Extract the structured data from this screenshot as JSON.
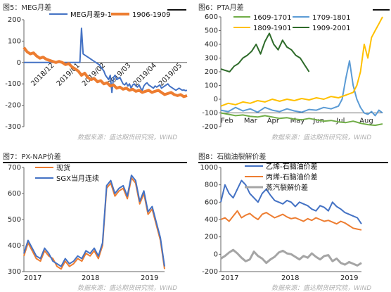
{
  "source_text": "数据来源：盛达期货研究院，WIND",
  "chart_data": [
    {
      "id": "fig5",
      "type": "line",
      "title": "图5：MEG月差",
      "ylim": [
        -300,
        200
      ],
      "yticks": [
        200,
        100,
        0,
        -100,
        -200,
        -300
      ],
      "xlabels": [
        "2018/12",
        "2019/01",
        "2019/02",
        "2019/03",
        "2019/04",
        "2019/05"
      ],
      "legend_position": "top",
      "series": [
        {
          "name": "MEG月差9-1",
          "color": "#4472c4",
          "x": [
            0,
            5,
            10,
            15,
            20,
            25,
            30,
            35,
            40,
            45,
            50,
            55,
            60,
            65,
            70,
            72,
            74,
            76,
            78,
            80,
            82,
            84,
            86,
            88,
            90,
            92,
            94,
            96,
            98,
            100,
            102,
            104,
            106,
            108,
            110,
            112,
            114,
            116,
            118,
            120,
            122,
            124,
            126,
            128,
            130,
            132,
            134,
            136,
            138,
            140,
            142,
            144,
            146,
            148,
            150,
            152,
            154,
            156,
            158,
            160,
            162,
            164,
            166,
            168,
            170,
            172,
            174,
            176,
            178,
            180,
            182,
            184,
            186,
            188,
            190,
            192,
            194,
            196,
            198,
            200,
            202,
            204
          ],
          "y": [
            0,
            0,
            0,
            0,
            0,
            0,
            0,
            0,
            0,
            0,
            0,
            0,
            0,
            0,
            0,
            160,
            40,
            35,
            30,
            25,
            20,
            15,
            10,
            5,
            0,
            -5,
            -10,
            -20,
            -30,
            -40,
            -60,
            -70,
            -80,
            -60,
            -140,
            -70,
            -60,
            -80,
            -75,
            -70,
            -85,
            -100,
            -105,
            -95,
            -110,
            -100,
            -120,
            -105,
            -100,
            -110,
            -115,
            -105,
            -120,
            -130,
            -110,
            -100,
            -95,
            -105,
            -110,
            -115,
            -120,
            -110,
            -115,
            -110,
            -105,
            -120,
            -115,
            -110,
            -105,
            -100,
            -110,
            -115,
            -120,
            -125,
            -130,
            -125,
            -120,
            -125,
            -130,
            -128,
            -132,
            -130
          ]
        },
        {
          "name": "1906-1909",
          "color": "#ed7d31",
          "x": [
            0,
            4,
            8,
            12,
            16,
            20,
            24,
            28,
            32,
            36,
            40,
            44,
            48,
            52,
            56,
            60,
            64,
            68,
            72,
            76,
            80,
            84,
            88,
            92,
            96,
            100,
            104,
            108,
            112,
            116,
            120,
            124,
            128,
            132,
            136,
            140,
            144,
            148,
            152,
            156,
            160,
            164,
            168,
            172,
            176,
            180,
            184,
            188,
            192,
            196,
            200,
            204
          ],
          "y": [
            70,
            50,
            40,
            45,
            30,
            20,
            25,
            15,
            10,
            5,
            0,
            5,
            0,
            -10,
            -5,
            -20,
            -30,
            -40,
            -60,
            -50,
            -70,
            -80,
            -75,
            -90,
            -85,
            -100,
            -95,
            -110,
            -105,
            -120,
            -115,
            -125,
            -120,
            -130,
            -125,
            -135,
            -130,
            -140,
            -135,
            -130,
            -140,
            -135,
            -130,
            -140,
            -150,
            -145,
            -140,
            -150,
            -155,
            -150,
            -160,
            -155
          ]
        }
      ]
    },
    {
      "id": "fig6",
      "type": "line",
      "title": "图6：PTA月差",
      "ylim": [
        -200,
        600
      ],
      "yticks": [
        600,
        500,
        400,
        300,
        200,
        100,
        0,
        -100,
        -200
      ],
      "xlabels": [
        "Feb",
        "Mar",
        "Apr",
        "May",
        "Jun",
        "Jul",
        "Aug"
      ],
      "legend_position": "top",
      "series": [
        {
          "name": "1609-1701",
          "color": "#70ad47",
          "x": [
            0,
            10,
            20,
            30,
            40,
            50,
            60,
            70,
            80,
            90,
            100,
            110,
            120,
            130,
            140,
            150,
            160,
            170,
            180,
            190,
            200,
            210,
            220
          ],
          "y": [
            -100,
            -110,
            -120,
            -115,
            -125,
            -130,
            -120,
            -130,
            -140,
            -135,
            -145,
            -150,
            -140,
            -150,
            -160,
            -155,
            -165,
            -170,
            -160,
            -175,
            -185,
            -190,
            -180
          ]
        },
        {
          "name": "1709-1801",
          "color": "#5b9bd5",
          "x": [
            0,
            10,
            20,
            30,
            40,
            50,
            60,
            70,
            80,
            90,
            100,
            110,
            120,
            130,
            140,
            150,
            160,
            165,
            170,
            175,
            180,
            185,
            190,
            195,
            200,
            205,
            210,
            215,
            220
          ],
          "y": [
            -80,
            -90,
            -60,
            -85,
            -70,
            -95,
            -60,
            -80,
            -90,
            -70,
            -85,
            -95,
            -75,
            -80,
            -60,
            -70,
            -50,
            0,
            150,
            280,
            100,
            0,
            -60,
            -100,
            -110,
            -90,
            -120,
            -80,
            -100
          ]
        },
        {
          "name": "1809-1901",
          "color": "#ffc000",
          "x": [
            0,
            10,
            20,
            30,
            40,
            50,
            60,
            70,
            80,
            90,
            100,
            110,
            120,
            130,
            140,
            150,
            160,
            170,
            180,
            185,
            190,
            195,
            200,
            205,
            210,
            215,
            220
          ],
          "y": [
            -50,
            -30,
            -40,
            -20,
            -30,
            -10,
            -20,
            0,
            -15,
            0,
            -10,
            5,
            -5,
            10,
            0,
            20,
            10,
            30,
            50,
            100,
            200,
            400,
            300,
            450,
            500,
            550,
            600
          ]
        },
        {
          "name": "1909-2001",
          "color": "#2e6b2a",
          "x": [
            0,
            6,
            12,
            18,
            24,
            30,
            36,
            42,
            48,
            54,
            60,
            66,
            72,
            78,
            84,
            90,
            96,
            102,
            108,
            114,
            120
          ],
          "y": [
            220,
            210,
            200,
            240,
            260,
            300,
            320,
            350,
            400,
            330,
            420,
            480,
            400,
            360,
            430,
            380,
            360,
            320,
            300,
            250,
            200
          ]
        }
      ]
    },
    {
      "id": "fig7",
      "type": "line",
      "title": "图7：PX-NAP价差",
      "ylim": [
        300,
        700
      ],
      "yticks": [
        700,
        600,
        500,
        400,
        300
      ],
      "xlabels": [
        "2017",
        "2018",
        "2019"
      ],
      "legend_position": "top",
      "series": [
        {
          "name": "现货",
          "color": "#ed7d31",
          "x": [
            0,
            6,
            12,
            18,
            24,
            30,
            36,
            42,
            48,
            54,
            60,
            66,
            72,
            78,
            84,
            90,
            96,
            102,
            108,
            114,
            120,
            126,
            132,
            138,
            144,
            150,
            156,
            162,
            168,
            174,
            180,
            186,
            192,
            198,
            204
          ],
          "y": [
            360,
            410,
            380,
            350,
            340,
            380,
            360,
            350,
            320,
            310,
            340,
            320,
            330,
            350,
            340,
            370,
            360,
            380,
            350,
            400,
            620,
            640,
            590,
            610,
            620,
            580,
            660,
            640,
            560,
            600,
            520,
            540,
            480,
            420,
            310
          ]
        },
        {
          "name": "SGX当月连续",
          "color": "#4472c4",
          "x": [
            0,
            6,
            12,
            18,
            24,
            30,
            36,
            42,
            48,
            54,
            60,
            66,
            72,
            78,
            84,
            90,
            96,
            102,
            108,
            114,
            120,
            126,
            132,
            138,
            144,
            150,
            156,
            162,
            168,
            174,
            180,
            186,
            192,
            198,
            204
          ],
          "y": [
            370,
            420,
            390,
            360,
            350,
            390,
            370,
            340,
            330,
            320,
            350,
            330,
            340,
            360,
            350,
            380,
            370,
            390,
            360,
            410,
            630,
            650,
            600,
            620,
            630,
            590,
            670,
            650,
            570,
            610,
            530,
            550,
            490,
            430,
            320
          ]
        }
      ]
    },
    {
      "id": "fig8",
      "type": "line",
      "title": "图8：石脑油裂解价差",
      "ylim": [
        -200,
        1000
      ],
      "yticks": [
        1000,
        800,
        600,
        400,
        200,
        0,
        -200
      ],
      "xlabels": [
        "2017",
        "2018",
        "2019"
      ],
      "legend_position": "top",
      "series": [
        {
          "name": "乙烯-石脑油价差",
          "color": "#4472c4",
          "x": [
            0,
            6,
            12,
            18,
            24,
            30,
            36,
            42,
            48,
            54,
            60,
            66,
            72,
            78,
            84,
            90,
            96,
            102,
            108,
            114,
            120,
            126,
            132,
            138,
            144,
            150,
            156,
            162,
            168,
            174,
            180,
            186,
            192,
            198,
            204
          ],
          "y": [
            600,
            800,
            700,
            650,
            750,
            850,
            800,
            700,
            650,
            600,
            700,
            750,
            680,
            620,
            600,
            580,
            620,
            600,
            550,
            600,
            580,
            560,
            520,
            500,
            560,
            540,
            500,
            600,
            550,
            520,
            480,
            460,
            440,
            420,
            350
          ]
        },
        {
          "name": "丙烯-石脑油价差",
          "color": "#ed7d31",
          "x": [
            0,
            6,
            12,
            18,
            24,
            30,
            36,
            42,
            48,
            54,
            60,
            66,
            72,
            78,
            84,
            90,
            96,
            102,
            108,
            114,
            120,
            126,
            132,
            138,
            144,
            150,
            156,
            162,
            168,
            174,
            180,
            186,
            192,
            198,
            204
          ],
          "y": [
            400,
            420,
            380,
            440,
            500,
            420,
            450,
            470,
            430,
            400,
            460,
            480,
            450,
            420,
            440,
            460,
            430,
            410,
            420,
            400,
            380,
            410,
            390,
            420,
            400,
            380,
            390,
            370,
            350,
            380,
            360,
            330,
            300,
            290,
            280
          ]
        },
        {
          "name": "蒸汽裂解价差",
          "color": "#a5a5a5",
          "x": [
            0,
            6,
            12,
            18,
            24,
            30,
            36,
            42,
            48,
            54,
            60,
            66,
            72,
            78,
            84,
            90,
            96,
            102,
            108,
            114,
            120,
            126,
            132,
            138,
            144,
            150,
            156,
            162,
            168,
            174,
            180,
            186,
            192,
            198,
            204
          ],
          "y": [
            -50,
            -20,
            20,
            50,
            10,
            -40,
            -80,
            -60,
            30,
            -20,
            -50,
            -100,
            -60,
            -30,
            20,
            40,
            10,
            0,
            -30,
            -60,
            -20,
            -40,
            10,
            -30,
            -60,
            -20,
            -10,
            -80,
            -50,
            -100,
            -120,
            -90,
            -110,
            -130,
            -100
          ]
        }
      ]
    }
  ]
}
